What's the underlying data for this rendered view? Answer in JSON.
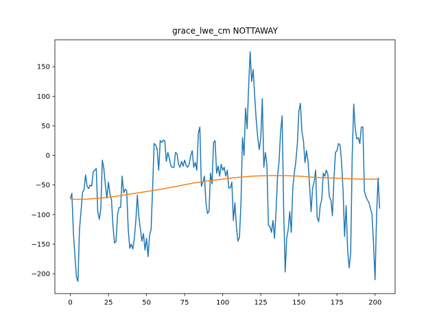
{
  "chart_data": {
    "type": "line",
    "title": "grace_lwe_cm NOTTAWAY",
    "xlim": [
      -10.15,
      213.15
    ],
    "ylim": [
      -233.5,
      195.5
    ],
    "xticks": [
      0,
      25,
      50,
      75,
      100,
      125,
      150,
      175,
      200
    ],
    "yticks": [
      {
        "value": -200,
        "label": "−200"
      },
      {
        "value": -150,
        "label": "−150"
      },
      {
        "value": -100,
        "label": "−100"
      },
      {
        "value": -50,
        "label": "−50"
      },
      0,
      50,
      100,
      150
    ],
    "grid": false,
    "series": [
      {
        "color": "#1f77b4",
        "x": [
          0,
          1,
          2,
          3,
          4,
          5,
          6,
          7,
          8,
          9,
          10,
          11,
          12,
          13,
          14,
          15,
          16,
          17,
          18,
          19,
          20,
          21,
          22,
          23,
          24,
          25,
          26,
          27,
          28,
          29,
          30,
          31,
          32,
          33,
          34,
          35,
          36,
          37,
          38,
          39,
          40,
          41,
          42,
          43,
          44,
          45,
          46,
          47,
          48,
          49,
          50,
          51,
          52,
          53,
          54,
          55,
          56,
          57,
          58,
          59,
          60,
          61,
          62,
          63,
          64,
          65,
          66,
          67,
          68,
          69,
          70,
          71,
          72,
          73,
          74,
          75,
          76,
          77,
          78,
          79,
          80,
          81,
          82,
          83,
          84,
          85,
          86,
          87,
          88,
          89,
          90,
          91,
          92,
          93,
          94,
          95,
          96,
          97,
          98,
          99,
          100,
          101,
          102,
          103,
          104,
          105,
          106,
          107,
          108,
          109,
          110,
          111,
          112,
          113,
          114,
          115,
          116,
          117,
          118,
          119,
          120,
          121,
          122,
          123,
          124,
          125,
          126,
          127,
          128,
          129,
          130,
          131,
          132,
          133,
          134,
          135,
          136,
          137,
          138,
          139,
          140,
          141,
          142,
          143,
          144,
          145,
          146,
          147,
          148,
          149,
          150,
          151,
          152,
          153,
          154,
          155,
          156,
          157,
          158,
          159,
          160,
          161,
          162,
          163,
          164,
          165,
          166,
          167,
          168,
          169,
          170,
          171,
          172,
          173,
          174,
          175,
          176,
          177,
          178,
          179,
          180,
          181,
          182,
          183,
          184,
          185,
          186,
          187,
          188,
          189,
          190,
          191,
          192,
          193,
          194,
          195,
          196,
          197,
          198,
          199,
          200,
          201,
          202,
          203
        ],
        "values": [
          -73,
          -64,
          -130,
          -170,
          -205,
          -213,
          -125,
          -95,
          -62,
          -58,
          -33,
          -52,
          -56,
          -50,
          -52,
          -28,
          -25,
          -22,
          -95,
          -108,
          -90,
          -8,
          -22,
          -50,
          -72,
          -45,
          -65,
          -75,
          -120,
          -148,
          -145,
          -100,
          -88,
          -88,
          -35,
          -63,
          -57,
          -60,
          -125,
          -157,
          -150,
          -158,
          -140,
          -110,
          -67,
          -105,
          -125,
          -145,
          -132,
          -160,
          -140,
          -171,
          -135,
          -125,
          -55,
          20,
          18,
          10,
          -25,
          25,
          22,
          26,
          25,
          -10,
          5,
          -5,
          -18,
          -20,
          -20,
          5,
          3,
          -15,
          -20,
          -10,
          -18,
          -8,
          -17,
          -20,
          -15,
          0,
          8,
          -20,
          -12,
          -25,
          37,
          48,
          -52,
          -45,
          -35,
          -80,
          -98,
          -95,
          -30,
          -48,
          22,
          25,
          -30,
          -18,
          -35,
          -15,
          -25,
          -20,
          -35,
          -25,
          -55,
          -55,
          -45,
          -110,
          -80,
          -120,
          -145,
          -138,
          -80,
          30,
          0,
          80,
          45,
          115,
          175,
          125,
          145,
          100,
          60,
          30,
          10,
          30,
          96,
          -20,
          5,
          -15,
          -118,
          -120,
          -130,
          -110,
          -140,
          -95,
          -35,
          -10,
          40,
          67,
          -90,
          -197,
          -140,
          -125,
          -95,
          -130,
          -55,
          -30,
          -10,
          20,
          75,
          88,
          40,
          25,
          -12,
          8,
          -10,
          -50,
          -95,
          -55,
          -45,
          -25,
          -105,
          -112,
          -85,
          -75,
          -30,
          -35,
          -25,
          -32,
          -70,
          -75,
          -102,
          -40,
          5,
          8,
          20,
          18,
          -10,
          -60,
          -137,
          -85,
          -160,
          -190,
          -165,
          0,
          87,
          45,
          28,
          30,
          20,
          48,
          48,
          -60,
          -70,
          -75,
          -80,
          -90,
          -100,
          -150,
          -210,
          -100,
          -38,
          -90
        ]
      },
      {
        "color": "#ff7f0e",
        "x": [
          0,
          10,
          20,
          30,
          40,
          50,
          60,
          70,
          80,
          90,
          100,
          110,
          120,
          130,
          140,
          150,
          160,
          170,
          180,
          190,
          200,
          203
        ],
        "values": [
          -74,
          -74,
          -72,
          -69,
          -65,
          -61,
          -57,
          -52,
          -47,
          -43,
          -40,
          -37,
          -35,
          -34,
          -34,
          -35,
          -37,
          -38,
          -39,
          -40,
          -40,
          -40
        ]
      }
    ]
  }
}
